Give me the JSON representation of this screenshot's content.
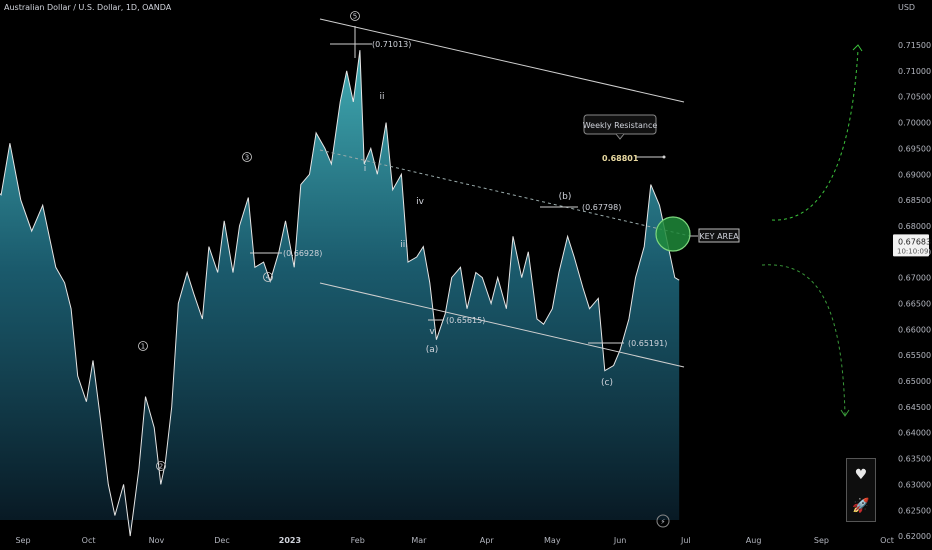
{
  "header": {
    "title": "Australian Dollar / U.S. Dollar, 1D, OANDA",
    "currency": "USD"
  },
  "chart_data": {
    "type": "area",
    "title": "Australian Dollar / U.S. Dollar, 1D, OANDA",
    "ylabel": "USD",
    "ylim": [
      0.618,
      0.7185
    ],
    "yticks": [
      "0.71500",
      "0.71000",
      "0.70500",
      "0.70000",
      "0.69500",
      "0.69000",
      "0.68500",
      "0.68000",
      "0.67500",
      "0.67000",
      "0.66500",
      "0.66000",
      "0.65500",
      "0.65000",
      "0.64500",
      "0.64000",
      "0.63500",
      "0.63000",
      "0.62500",
      "0.62000"
    ],
    "xticks": [
      {
        "label": "Sep",
        "date": "2022-09-01"
      },
      {
        "label": "Oct",
        "date": "2022-10-01"
      },
      {
        "label": "Nov",
        "date": "2022-11-01"
      },
      {
        "label": "Dec",
        "date": "2022-12-01"
      },
      {
        "label": "2023",
        "date": "2023-01-01",
        "bold": true
      },
      {
        "label": "Feb",
        "date": "2023-02-01"
      },
      {
        "label": "Mar",
        "date": "2023-03-01"
      },
      {
        "label": "Apr",
        "date": "2023-04-01"
      },
      {
        "label": "May",
        "date": "2023-05-01"
      },
      {
        "label": "Jun",
        "date": "2023-06-01"
      },
      {
        "label": "Jul",
        "date": "2023-07-01"
      },
      {
        "label": "Aug",
        "date": "2023-08-01"
      },
      {
        "label": "Sep",
        "date": "2023-09-01"
      },
      {
        "label": "Oct",
        "date": "2023-10-01"
      }
    ],
    "series": [
      {
        "points": [
          [
            "2022-08-02",
            0.6965
          ],
          [
            "2022-08-05",
            0.6905
          ],
          [
            "2022-08-10",
            0.7
          ],
          [
            "2022-08-17",
            0.688
          ],
          [
            "2022-08-22",
            0.686
          ],
          [
            "2022-08-26",
            0.696
          ],
          [
            "2022-08-31",
            0.685
          ],
          [
            "2022-09-05",
            0.679
          ],
          [
            "2022-09-10",
            0.684
          ],
          [
            "2022-09-16",
            0.672
          ],
          [
            "2022-09-20",
            0.669
          ],
          [
            "2022-09-23",
            0.664
          ],
          [
            "2022-09-26",
            0.651
          ],
          [
            "2022-09-30",
            0.646
          ],
          [
            "2022-10-03",
            0.654
          ],
          [
            "2022-10-06",
            0.644
          ],
          [
            "2022-10-10",
            0.63
          ],
          [
            "2022-10-13",
            0.624
          ],
          [
            "2022-10-17",
            0.63
          ],
          [
            "2022-10-20",
            0.62
          ],
          [
            "2022-10-24",
            0.633
          ],
          [
            "2022-10-27",
            0.647
          ],
          [
            "2022-10-31",
            0.641
          ],
          [
            "2022-11-03",
            0.63
          ],
          [
            "2022-11-05",
            0.634
          ],
          [
            "2022-11-08",
            0.645
          ],
          [
            "2022-11-11",
            0.665
          ],
          [
            "2022-11-15",
            0.671
          ],
          [
            "2022-11-18",
            0.667
          ],
          [
            "2022-11-22",
            0.662
          ],
          [
            "2022-11-25",
            0.676
          ],
          [
            "2022-11-29",
            0.671
          ],
          [
            "2022-12-02",
            0.681
          ],
          [
            "2022-12-06",
            0.671
          ],
          [
            "2022-12-09",
            0.68
          ],
          [
            "2022-12-13",
            0.6855
          ],
          [
            "2022-12-16",
            0.672
          ],
          [
            "2022-12-20",
            0.673
          ],
          [
            "2022-12-23",
            0.6693
          ],
          [
            "2022-12-27",
            0.675
          ],
          [
            "2022-12-30",
            0.681
          ],
          [
            "2023-01-03",
            0.672
          ],
          [
            "2023-01-06",
            0.688
          ],
          [
            "2023-01-10",
            0.69
          ],
          [
            "2023-01-13",
            0.698
          ],
          [
            "2023-01-17",
            0.695
          ],
          [
            "2023-01-20",
            0.692
          ],
          [
            "2023-01-24",
            0.704
          ],
          [
            "2023-01-27",
            0.71
          ],
          [
            "2023-01-30",
            0.704
          ],
          [
            "2023-02-02",
            0.714
          ],
          [
            "2023-02-04",
            0.692
          ],
          [
            "2023-02-07",
            0.695
          ],
          [
            "2023-02-10",
            0.69
          ],
          [
            "2023-02-14",
            0.7
          ],
          [
            "2023-02-17",
            0.687
          ],
          [
            "2023-02-21",
            0.69
          ],
          [
            "2023-02-24",
            0.673
          ],
          [
            "2023-02-28",
            0.674
          ],
          [
            "2023-03-03",
            0.676
          ],
          [
            "2023-03-06",
            0.669
          ],
          [
            "2023-03-09",
            0.658
          ],
          [
            "2023-03-13",
            0.663
          ],
          [
            "2023-03-16",
            0.67
          ],
          [
            "2023-03-20",
            0.672
          ],
          [
            "2023-03-23",
            0.664
          ],
          [
            "2023-03-27",
            0.671
          ],
          [
            "2023-03-30",
            0.67
          ],
          [
            "2023-04-03",
            0.665
          ],
          [
            "2023-04-06",
            0.67
          ],
          [
            "2023-04-10",
            0.664
          ],
          [
            "2023-04-13",
            0.678
          ],
          [
            "2023-04-17",
            0.67
          ],
          [
            "2023-04-20",
            0.675
          ],
          [
            "2023-04-24",
            0.662
          ],
          [
            "2023-04-27",
            0.661
          ],
          [
            "2023-05-01",
            0.664
          ],
          [
            "2023-05-04",
            0.671
          ],
          [
            "2023-05-08",
            0.678
          ],
          [
            "2023-05-11",
            0.674
          ],
          [
            "2023-05-15",
            0.668
          ],
          [
            "2023-05-18",
            0.664
          ],
          [
            "2023-05-22",
            0.666
          ],
          [
            "2023-05-25",
            0.652
          ],
          [
            "2023-05-29",
            0.653
          ],
          [
            "2023-06-01",
            0.656
          ],
          [
            "2023-06-05",
            0.662
          ],
          [
            "2023-06-08",
            0.67
          ],
          [
            "2023-06-12",
            0.676
          ],
          [
            "2023-06-15",
            0.688
          ],
          [
            "2023-06-19",
            0.684
          ],
          [
            "2023-06-22",
            0.678
          ],
          [
            "2023-06-26",
            0.67
          ],
          [
            "2023-06-28",
            0.6695
          ]
        ]
      }
    ],
    "last_price": "0.67683",
    "countdown": "10:10:09",
    "annotations": {
      "price_labels": [
        "(0.71013)",
        "(0.66928)",
        "(0.65615)",
        "(0.65191)",
        "(0.67798)"
      ],
      "resistance_label": "Weekly Resistance",
      "resistance_value": "0.68801",
      "key_area": "KEY AREA",
      "waves": [
        "5",
        "3",
        "4",
        "1",
        "2",
        "ii",
        "i",
        "iv",
        "iii",
        "v",
        "(a)",
        "(b)",
        "(c)"
      ]
    },
    "colors": {
      "area_top": "#3aa6b3",
      "area_bottom": "#0d2232",
      "line": "#e6e6e6",
      "key_area": "#1f8a3a",
      "projection": "#3cc43c"
    }
  },
  "side_panel": {
    "items": [
      {
        "icon": "heart-icon",
        "glyph": "♥"
      },
      {
        "icon": "rocket-icon",
        "glyph": "🚀"
      }
    ]
  }
}
